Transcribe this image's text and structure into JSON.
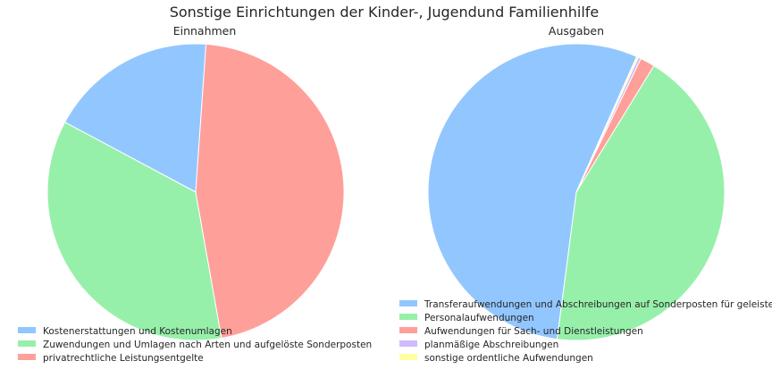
{
  "chart_data": {
    "title": "Sonstige Einrichtungen der Kinder-, Jugendund Familienhilfe",
    "charts": [
      {
        "type": "pie",
        "title": "Einnahmen",
        "legend_position": "bottom-left",
        "slices": [
          {
            "label": "Kostenerstattungen und Kostenumlagen",
            "value": 18.3,
            "color": "#92c6ff"
          },
          {
            "label": "Zuwendungen und Umlagen nach Arten und aufgelöste Sonderposten",
            "value": 35.6,
            "color": "#97f0aa"
          },
          {
            "label": "privatrechtliche Leistungsentgelte",
            "value": 46.1,
            "color": "#ff9f9a"
          }
        ]
      },
      {
        "type": "pie",
        "title": "Ausgaben",
        "legend_position": "bottom",
        "slices": [
          {
            "label": "Transferaufwendungen und Abschreibungen auf Sonderposten für geleiste",
            "value": 54.6,
            "color": "#92c6ff"
          },
          {
            "label": "Personalaufwendungen",
            "value": 43.3,
            "color": "#97f0aa"
          },
          {
            "label": "Aufwendungen für Sach- und Dienstleistungen",
            "value": 1.6,
            "color": "#ff9f9a"
          },
          {
            "label": "planmäßige Abschreibungen",
            "value": 0.3,
            "color": "#d0bbff"
          },
          {
            "label": "sonstige ordentliche Aufwendungen",
            "value": 0.2,
            "color": "#fffea3"
          }
        ]
      }
    ]
  }
}
